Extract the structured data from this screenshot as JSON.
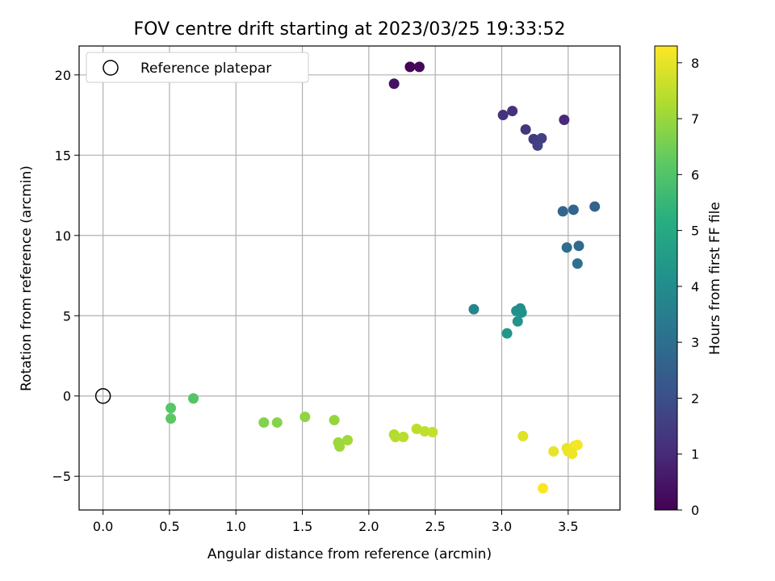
{
  "chart_data": {
    "type": "scatter",
    "title": "FOV centre drift starting at 2023/03/25 19:33:52",
    "xlabel": "Angular distance from reference (arcmin)",
    "ylabel": "Rotation from reference (arcmin)",
    "xlim": [
      -0.18,
      3.89
    ],
    "ylim": [
      -7.1,
      21.8
    ],
    "xticks": [
      "0.0",
      "0.5",
      "1.0",
      "1.5",
      "2.0",
      "2.5",
      "3.0",
      "3.5"
    ],
    "xtick_values": [
      0,
      0.5,
      1.0,
      1.5,
      2.0,
      2.5,
      3.0,
      3.5
    ],
    "yticks": [
      "−5",
      "0",
      "5",
      "10",
      "15",
      "20"
    ],
    "ytick_values": [
      -5,
      0,
      5,
      10,
      15,
      20
    ],
    "grid": true,
    "legend": {
      "placement": "top-left",
      "entries": [
        "Reference platepar"
      ]
    },
    "reference_point": {
      "x": 0.0,
      "y": 0.0
    },
    "colorbar": {
      "label": "Hours from first FF file",
      "range": [
        0,
        8.3
      ],
      "ticks": [
        "0",
        "1",
        "2",
        "3",
        "4",
        "5",
        "6",
        "7",
        "8"
      ],
      "tick_values": [
        0,
        1,
        2,
        3,
        4,
        5,
        6,
        7,
        8
      ],
      "colormap": "viridis"
    },
    "points": [
      {
        "x": 2.31,
        "y": 20.5,
        "hours": 0.05
      },
      {
        "x": 2.38,
        "y": 20.5,
        "hours": 0.2
      },
      {
        "x": 2.19,
        "y": 19.45,
        "hours": 0.4
      },
      {
        "x": 3.47,
        "y": 17.2,
        "hours": 1.0
      },
      {
        "x": 3.08,
        "y": 17.75,
        "hours": 1.15
      },
      {
        "x": 3.01,
        "y": 17.5,
        "hours": 1.2
      },
      {
        "x": 3.18,
        "y": 16.6,
        "hours": 1.35
      },
      {
        "x": 3.24,
        "y": 16.0,
        "hours": 1.45
      },
      {
        "x": 3.3,
        "y": 16.05,
        "hours": 1.55
      },
      {
        "x": 3.27,
        "y": 15.6,
        "hours": 1.6
      },
      {
        "x": 3.7,
        "y": 11.8,
        "hours": 2.6
      },
      {
        "x": 3.54,
        "y": 11.6,
        "hours": 2.65
      },
      {
        "x": 3.46,
        "y": 11.5,
        "hours": 2.7
      },
      {
        "x": 3.58,
        "y": 9.35,
        "hours": 2.85
      },
      {
        "x": 3.49,
        "y": 9.25,
        "hours": 2.95
      },
      {
        "x": 3.57,
        "y": 8.25,
        "hours": 3.1
      },
      {
        "x": 2.79,
        "y": 5.4,
        "hours": 3.75
      },
      {
        "x": 3.14,
        "y": 5.45,
        "hours": 4.0
      },
      {
        "x": 3.11,
        "y": 5.3,
        "hours": 4.1
      },
      {
        "x": 3.15,
        "y": 5.2,
        "hours": 4.15
      },
      {
        "x": 3.12,
        "y": 4.65,
        "hours": 4.25
      },
      {
        "x": 3.04,
        "y": 3.9,
        "hours": 4.35
      },
      {
        "x": 0.68,
        "y": -0.15,
        "hours": 6.05
      },
      {
        "x": 0.51,
        "y": -0.75,
        "hours": 6.1
      },
      {
        "x": 0.51,
        "y": -1.4,
        "hours": 6.15
      },
      {
        "x": 1.21,
        "y": -1.65,
        "hours": 6.7
      },
      {
        "x": 1.31,
        "y": -1.65,
        "hours": 6.75
      },
      {
        "x": 1.52,
        "y": -1.3,
        "hours": 6.85
      },
      {
        "x": 1.74,
        "y": -1.5,
        "hours": 6.95
      },
      {
        "x": 1.77,
        "y": -2.9,
        "hours": 7.05
      },
      {
        "x": 1.78,
        "y": -3.15,
        "hours": 7.05
      },
      {
        "x": 1.84,
        "y": -2.75,
        "hours": 7.1
      },
      {
        "x": 2.19,
        "y": -2.4,
        "hours": 7.3
      },
      {
        "x": 2.2,
        "y": -2.55,
        "hours": 7.35
      },
      {
        "x": 2.26,
        "y": -2.55,
        "hours": 7.4
      },
      {
        "x": 2.36,
        "y": -2.05,
        "hours": 7.45
      },
      {
        "x": 2.42,
        "y": -2.2,
        "hours": 7.5
      },
      {
        "x": 2.48,
        "y": -2.25,
        "hours": 7.55
      },
      {
        "x": 3.16,
        "y": -2.5,
        "hours": 7.9
      },
      {
        "x": 3.39,
        "y": -3.45,
        "hours": 8.0
      },
      {
        "x": 3.49,
        "y": -3.25,
        "hours": 8.05
      },
      {
        "x": 3.5,
        "y": -3.45,
        "hours": 8.1
      },
      {
        "x": 3.53,
        "y": -3.6,
        "hours": 8.1
      },
      {
        "x": 3.55,
        "y": -3.1,
        "hours": 8.15
      },
      {
        "x": 3.57,
        "y": -3.05,
        "hours": 8.2
      },
      {
        "x": 3.31,
        "y": -5.75,
        "hours": 8.25
      }
    ]
  }
}
